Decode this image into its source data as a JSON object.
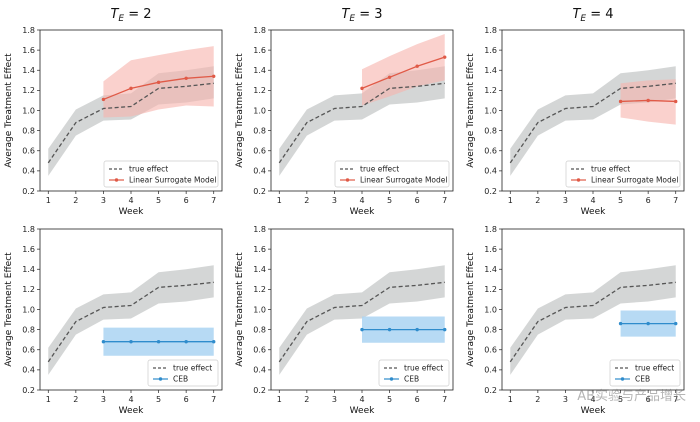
{
  "watermark": "AB实验与产品增长",
  "colors": {
    "true_line": "#555555",
    "band": "#c9cccc",
    "surrogate_line": "#e05a47",
    "surrogate_band": "#f6b2ab",
    "ceb_line": "#2f8ccc",
    "ceb_band": "#aad4f2"
  },
  "chart_data": [
    {
      "type": "line",
      "title": "T_E = 2",
      "title_base": "T",
      "title_sub": "E",
      "title_rest": " = 2",
      "xlabel": "Week",
      "ylabel": "Average Treatment Effect",
      "x_ticks": [
        1,
        2,
        3,
        4,
        5,
        6,
        7
      ],
      "y_ticks": [
        "0.2",
        "0.4",
        "0.6",
        "0.8",
        "1.0",
        "1.2",
        "1.4",
        "1.6",
        "1.8"
      ],
      "xlim": [
        0.7,
        7.3
      ],
      "ylim": [
        0.2,
        1.8
      ],
      "series": [
        {
          "name": "true effect",
          "style": "dashed",
          "x": [
            1,
            2,
            3,
            4,
            5,
            6,
            7
          ],
          "y": [
            0.48,
            0.88,
            1.02,
            1.04,
            1.22,
            1.24,
            1.27
          ],
          "band_low": [
            0.35,
            0.75,
            0.9,
            0.91,
            1.06,
            1.08,
            1.12
          ],
          "band_high": [
            0.62,
            1.01,
            1.15,
            1.17,
            1.37,
            1.4,
            1.44
          ]
        },
        {
          "name": "Linear Surrogate Model",
          "style": "solid-marker",
          "x": [
            3,
            4,
            5,
            6,
            7
          ],
          "y": [
            1.11,
            1.22,
            1.28,
            1.32,
            1.34
          ],
          "band_low": [
            0.93,
            0.94,
            1.01,
            1.05,
            1.04
          ],
          "band_high": [
            1.29,
            1.5,
            1.55,
            1.6,
            1.64
          ]
        }
      ],
      "legend": [
        "true effect",
        "Linear Surrogate Model"
      ],
      "legend_position": "bottom-right"
    },
    {
      "type": "line",
      "title": "T_E = 3",
      "title_base": "T",
      "title_sub": "E",
      "title_rest": " = 3",
      "xlabel": "Week",
      "ylabel": "Average Treatment Effect",
      "x_ticks": [
        1,
        2,
        3,
        4,
        5,
        6,
        7
      ],
      "y_ticks": [
        "0.2",
        "0.4",
        "0.6",
        "0.8",
        "1.0",
        "1.2",
        "1.4",
        "1.6",
        "1.8"
      ],
      "xlim": [
        0.7,
        7.3
      ],
      "ylim": [
        0.2,
        1.8
      ],
      "series": [
        {
          "name": "true effect",
          "style": "dashed",
          "x": [
            1,
            2,
            3,
            4,
            5,
            6,
            7
          ],
          "y": [
            0.48,
            0.88,
            1.02,
            1.04,
            1.22,
            1.24,
            1.27
          ],
          "band_low": [
            0.35,
            0.75,
            0.9,
            0.91,
            1.06,
            1.08,
            1.12
          ],
          "band_high": [
            0.62,
            1.01,
            1.15,
            1.17,
            1.37,
            1.4,
            1.44
          ]
        },
        {
          "name": "Linear Surrogate Model",
          "style": "solid-marker",
          "x": [
            4,
            5,
            6,
            7
          ],
          "y": [
            1.22,
            1.33,
            1.44,
            1.53
          ],
          "band_low": [
            1.05,
            1.14,
            1.24,
            1.3
          ],
          "band_high": [
            1.41,
            1.54,
            1.66,
            1.76
          ]
        }
      ],
      "legend": [
        "true effect",
        "Linear Surrogate Model"
      ],
      "legend_position": "bottom-right"
    },
    {
      "type": "line",
      "title": "T_E = 4",
      "title_base": "T",
      "title_sub": "E",
      "title_rest": " = 4",
      "xlabel": "Week",
      "ylabel": "Average Treatment Effect",
      "x_ticks": [
        1,
        2,
        3,
        4,
        5,
        6,
        7
      ],
      "y_ticks": [
        "0.2",
        "0.4",
        "0.6",
        "0.8",
        "1.0",
        "1.2",
        "1.4",
        "1.6",
        "1.8"
      ],
      "xlim": [
        0.7,
        7.3
      ],
      "ylim": [
        0.2,
        1.8
      ],
      "series": [
        {
          "name": "true effect",
          "style": "dashed",
          "x": [
            1,
            2,
            3,
            4,
            5,
            6,
            7
          ],
          "y": [
            0.48,
            0.88,
            1.02,
            1.04,
            1.22,
            1.24,
            1.27
          ],
          "band_low": [
            0.35,
            0.75,
            0.9,
            0.91,
            1.06,
            1.08,
            1.12
          ],
          "band_high": [
            0.62,
            1.01,
            1.15,
            1.17,
            1.37,
            1.4,
            1.44
          ]
        },
        {
          "name": "Linear Surrogate Model",
          "style": "solid-marker",
          "x": [
            5,
            6,
            7
          ],
          "y": [
            1.09,
            1.1,
            1.09
          ],
          "band_low": [
            0.93,
            0.89,
            0.86
          ],
          "band_high": [
            1.27,
            1.3,
            1.31
          ]
        }
      ],
      "legend": [
        "true effect",
        "Linear Surrogate Model"
      ],
      "legend_position": "bottom-right"
    },
    {
      "type": "line",
      "title": "",
      "xlabel": "Week",
      "ylabel": "Average Treatment Effect",
      "x_ticks": [
        1,
        2,
        3,
        4,
        5,
        6,
        7
      ],
      "y_ticks": [
        "0.2",
        "0.4",
        "0.6",
        "0.8",
        "1.0",
        "1.2",
        "1.4",
        "1.6",
        "1.8"
      ],
      "xlim": [
        0.7,
        7.3
      ],
      "ylim": [
        0.2,
        1.8
      ],
      "series": [
        {
          "name": "true effect",
          "style": "dashed",
          "x": [
            1,
            2,
            3,
            4,
            5,
            6,
            7
          ],
          "y": [
            0.48,
            0.88,
            1.02,
            1.04,
            1.22,
            1.24,
            1.27
          ],
          "band_low": [
            0.35,
            0.75,
            0.9,
            0.91,
            1.06,
            1.08,
            1.12
          ],
          "band_high": [
            0.62,
            1.01,
            1.15,
            1.17,
            1.37,
            1.4,
            1.44
          ]
        },
        {
          "name": "CEB",
          "style": "ceb",
          "x": [
            3,
            4,
            5,
            6,
            7
          ],
          "y": [
            0.68,
            0.68,
            0.68,
            0.68,
            0.68
          ],
          "band_low": [
            0.54,
            0.54,
            0.54,
            0.54,
            0.54
          ],
          "band_high": [
            0.82,
            0.82,
            0.82,
            0.82,
            0.82
          ]
        }
      ],
      "legend": [
        "true effect",
        "CEB"
      ],
      "legend_position": "bottom-right"
    },
    {
      "type": "line",
      "title": "",
      "xlabel": "Week",
      "ylabel": "Average Treatment Effect",
      "x_ticks": [
        1,
        2,
        3,
        4,
        5,
        6,
        7
      ],
      "y_ticks": [
        "0.2",
        "0.4",
        "0.6",
        "0.8",
        "1.0",
        "1.2",
        "1.4",
        "1.6",
        "1.8"
      ],
      "xlim": [
        0.7,
        7.3
      ],
      "ylim": [
        0.2,
        1.8
      ],
      "series": [
        {
          "name": "true effect",
          "style": "dashed",
          "x": [
            1,
            2,
            3,
            4,
            5,
            6,
            7
          ],
          "y": [
            0.48,
            0.88,
            1.02,
            1.04,
            1.22,
            1.24,
            1.27
          ],
          "band_low": [
            0.35,
            0.75,
            0.9,
            0.91,
            1.06,
            1.08,
            1.12
          ],
          "band_high": [
            0.62,
            1.01,
            1.15,
            1.17,
            1.37,
            1.4,
            1.44
          ]
        },
        {
          "name": "CEB",
          "style": "ceb",
          "x": [
            4,
            5,
            6,
            7
          ],
          "y": [
            0.8,
            0.8,
            0.8,
            0.8
          ],
          "band_low": [
            0.67,
            0.67,
            0.67,
            0.67
          ],
          "band_high": [
            0.93,
            0.93,
            0.93,
            0.93
          ]
        }
      ],
      "legend": [
        "true effect",
        "CEB"
      ],
      "legend_position": "bottom-right"
    },
    {
      "type": "line",
      "title": "",
      "xlabel": "Week",
      "ylabel": "Average Treatment Effect",
      "x_ticks": [
        1,
        2,
        3,
        4,
        5,
        6,
        7
      ],
      "y_ticks": [
        "0.2",
        "0.4",
        "0.6",
        "0.8",
        "1.0",
        "1.2",
        "1.4",
        "1.6",
        "1.8"
      ],
      "xlim": [
        0.7,
        7.3
      ],
      "ylim": [
        0.2,
        1.8
      ],
      "series": [
        {
          "name": "true effect",
          "style": "dashed",
          "x": [
            1,
            2,
            3,
            4,
            5,
            6,
            7
          ],
          "y": [
            0.48,
            0.88,
            1.02,
            1.04,
            1.22,
            1.24,
            1.27
          ],
          "band_low": [
            0.35,
            0.75,
            0.9,
            0.91,
            1.06,
            1.08,
            1.12
          ],
          "band_high": [
            0.62,
            1.01,
            1.15,
            1.17,
            1.37,
            1.4,
            1.44
          ]
        },
        {
          "name": "CEB",
          "style": "ceb",
          "x": [
            5,
            6,
            7
          ],
          "y": [
            0.86,
            0.86,
            0.86
          ],
          "band_low": [
            0.73,
            0.73,
            0.73
          ],
          "band_high": [
            0.99,
            0.99,
            0.99
          ]
        }
      ],
      "legend": [
        "true effect",
        "CEB"
      ],
      "legend_position": "bottom-right"
    }
  ]
}
